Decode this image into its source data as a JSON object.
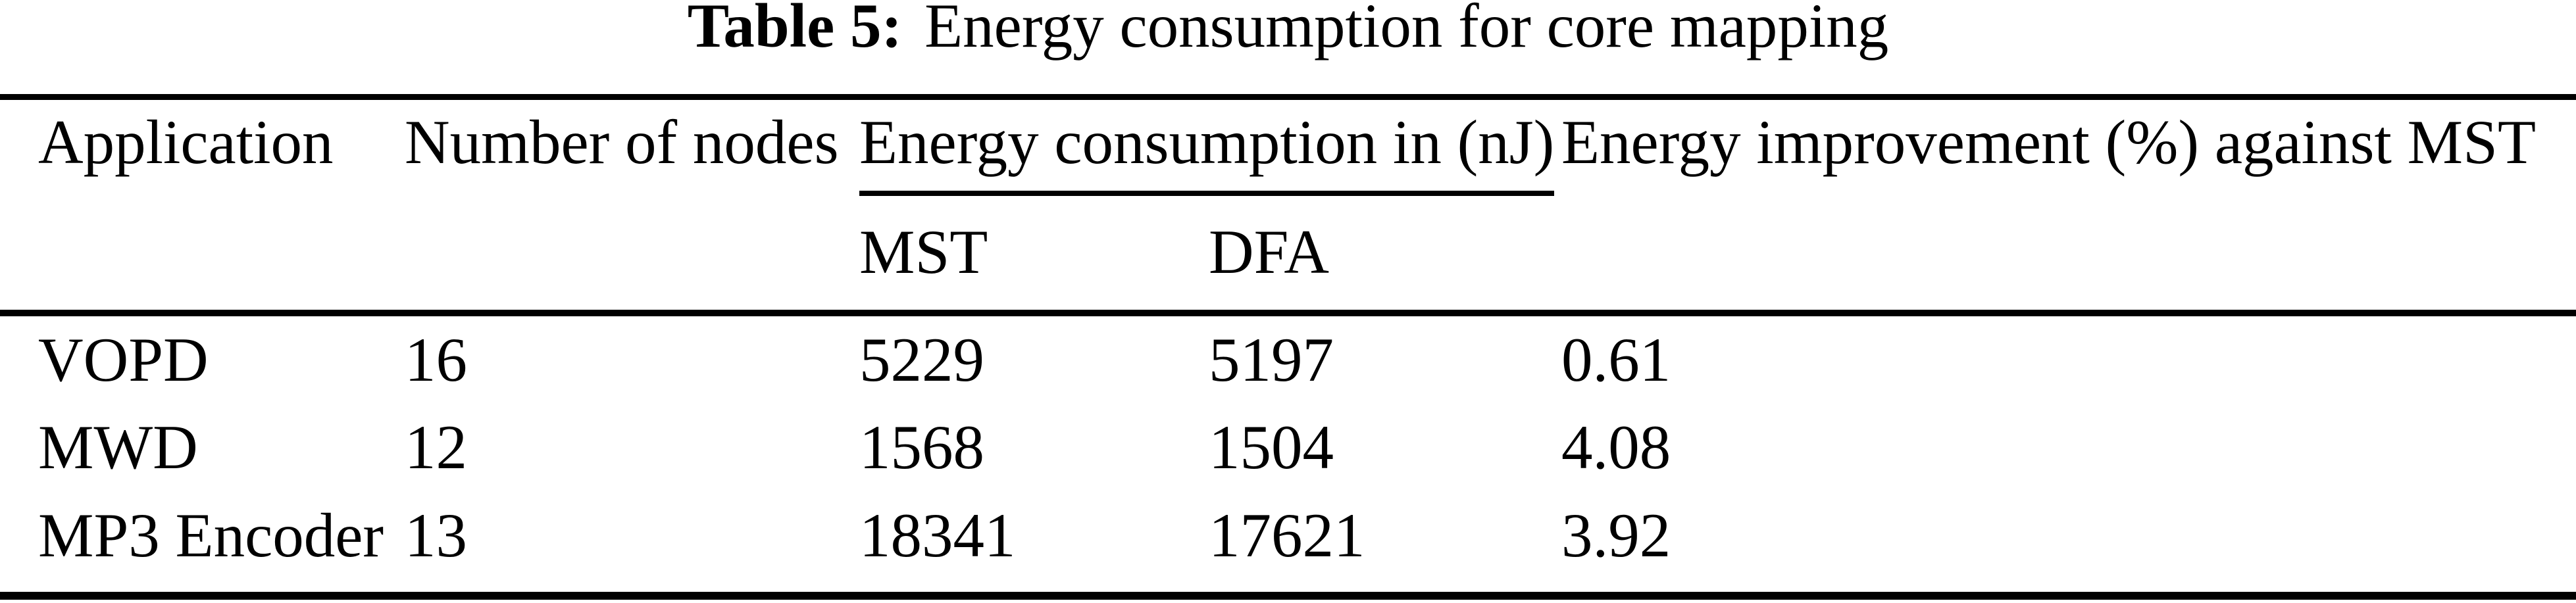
{
  "page": {
    "background": "#ffffff",
    "text_color": "#000000",
    "rule_color": "#000000"
  },
  "caption": {
    "label": "Table 5:",
    "title": "Energy consumption for core mapping"
  },
  "table": {
    "headers": {
      "application": "Application",
      "nodes": "Number of nodes",
      "energy_group": "Energy consumption in (nJ)",
      "improvement": "Energy improvement (%) against MST"
    },
    "subheaders": {
      "mst": "MST",
      "dfa": "DFA"
    },
    "rows": [
      {
        "application": "VOPD",
        "nodes": "16",
        "mst": "5229",
        "dfa": "5197",
        "improvement": "0.61"
      },
      {
        "application": "MWD",
        "nodes": "12",
        "mst": "1568",
        "dfa": "1504",
        "improvement": "4.08"
      },
      {
        "application": "MP3 Encoder",
        "nodes": "13",
        "mst": "18341",
        "dfa": "17621",
        "improvement": "3.92"
      }
    ]
  }
}
